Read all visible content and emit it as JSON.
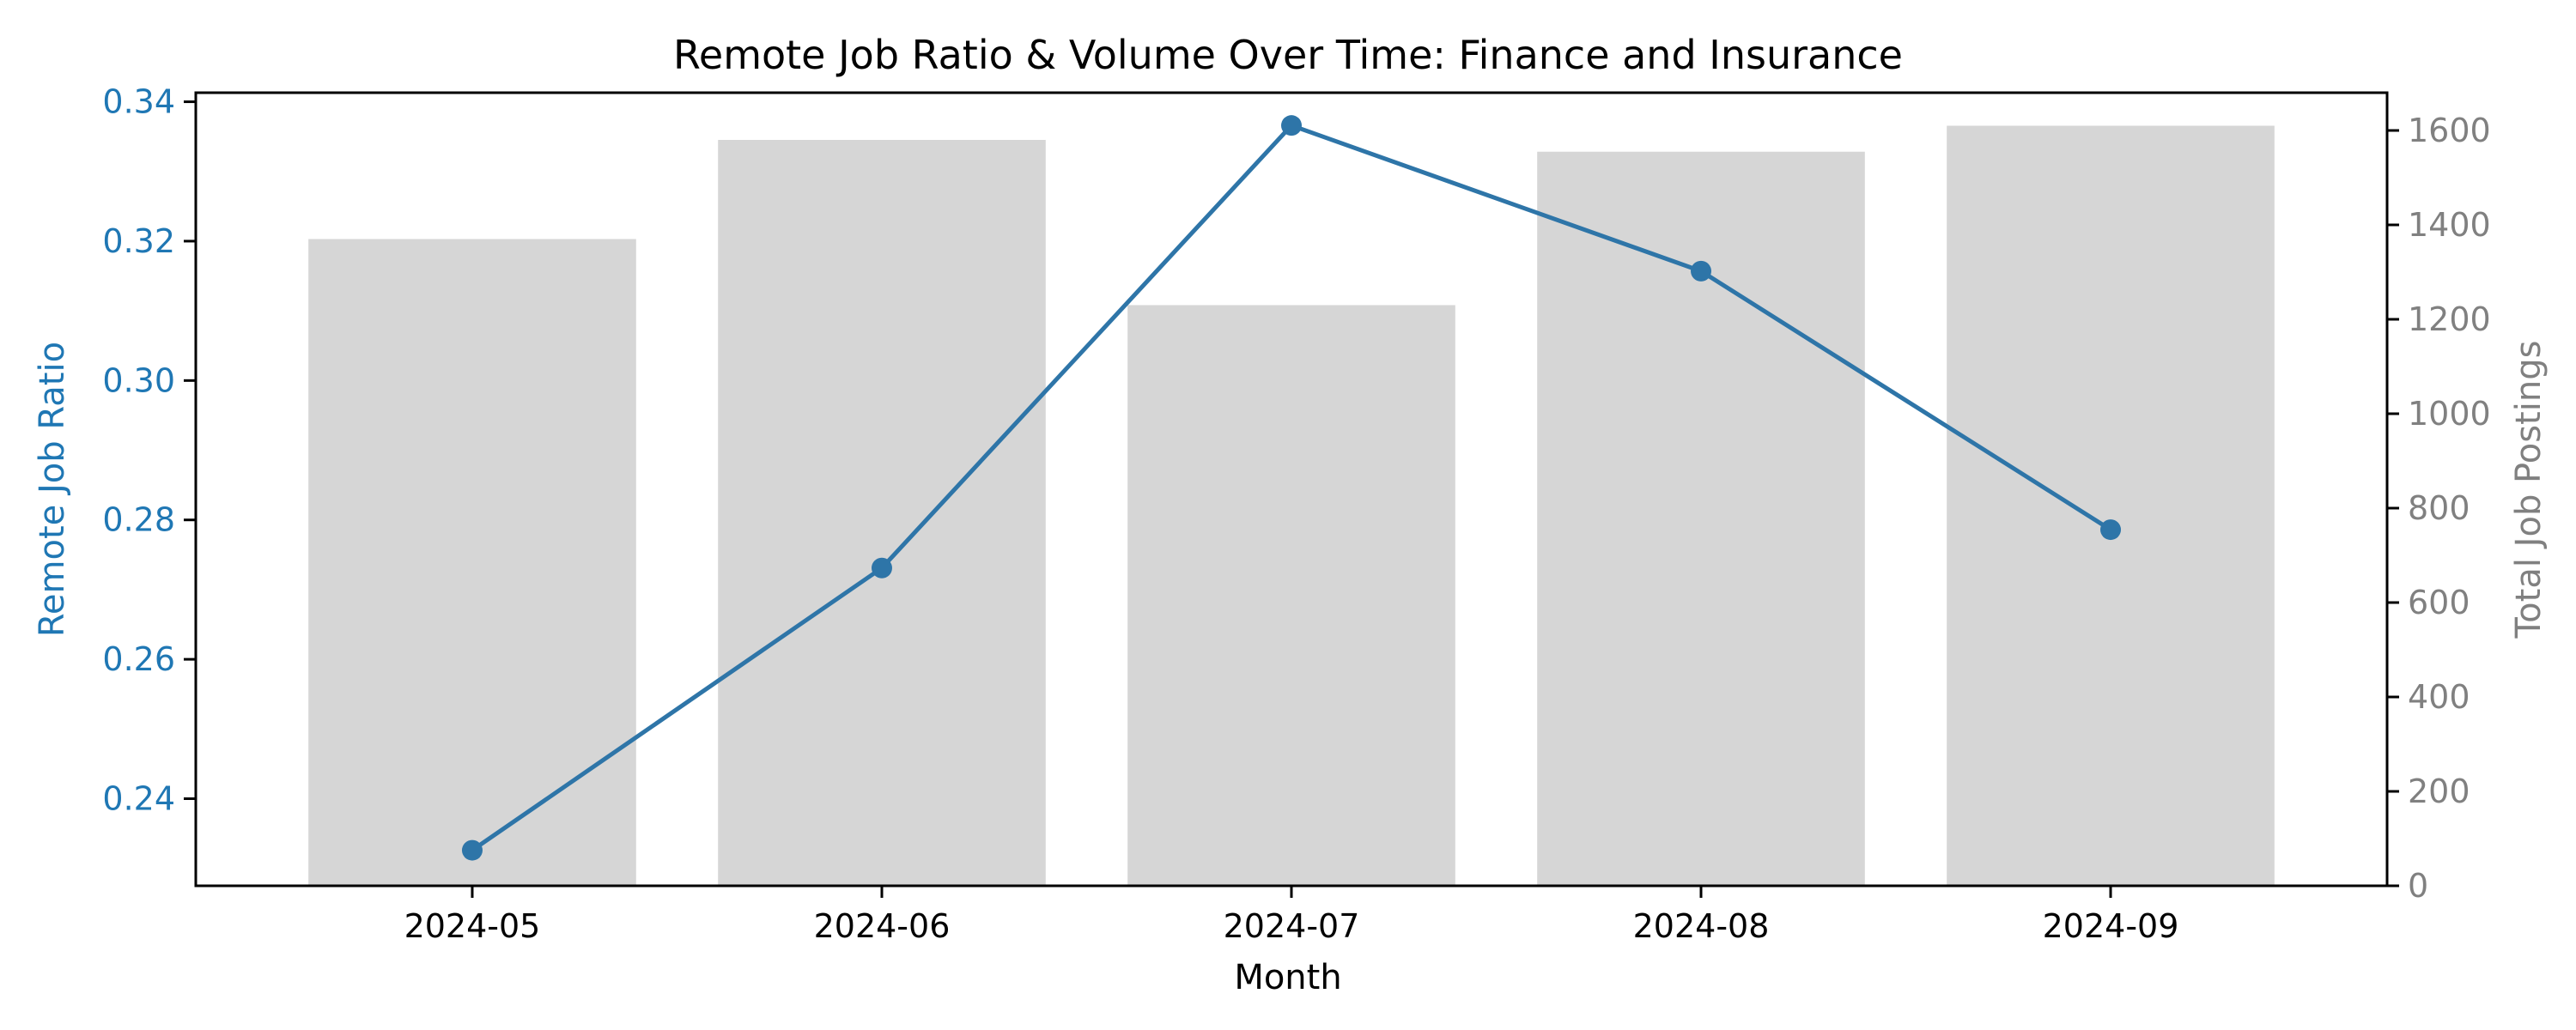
{
  "chart_data": {
    "type": "bar+line",
    "title": "Remote Job Ratio & Volume Over Time: Finance and Insurance",
    "xlabel": "Month",
    "categories": [
      "2024-05",
      "2024-06",
      "2024-07",
      "2024-08",
      "2024-09"
    ],
    "bars": {
      "axis": "right",
      "ylabel": "Total Job Postings",
      "values": [
        1370,
        1580,
        1230,
        1555,
        1610
      ],
      "ylim": [
        0,
        1680
      ],
      "ticks": [
        0,
        200,
        400,
        600,
        800,
        1000,
        1200,
        1400,
        1600
      ],
      "color": "#d6d6d6",
      "tick_color": "#808080"
    },
    "line": {
      "axis": "left",
      "ylabel": "Remote Job Ratio",
      "values": [
        0.2326,
        0.2731,
        0.3366,
        0.3157,
        0.2786
      ],
      "ylim": [
        0.2275,
        0.3413
      ],
      "ticks": [
        "0.24",
        "0.26",
        "0.28",
        "0.30",
        "0.32",
        "0.34"
      ],
      "color": "#2e75a8",
      "tick_color": "#1f77b4"
    },
    "grid": false,
    "legend": "none"
  }
}
